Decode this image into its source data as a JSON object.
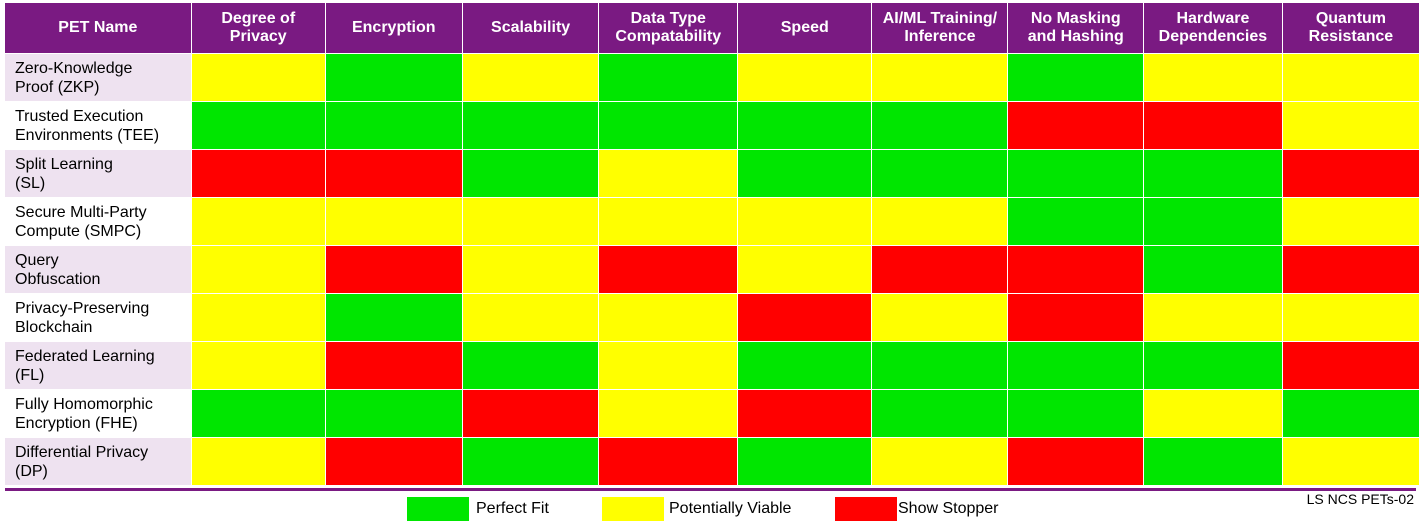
{
  "chart_data": {
    "type": "table",
    "columns": [
      "PET Name",
      "Degree of Privacy",
      "Encryption",
      "Scalability",
      "Data Type Compatability",
      "Speed",
      "AI/ML Training/ Inference",
      "No Masking and Hashing",
      "Hardware Dependencies",
      "Quantum Resistance"
    ],
    "rows": [
      {
        "name": "Zero-Knowledge Proof (ZKP)",
        "values": [
          "Potentially Viable",
          "Perfect Fit",
          "Potentially Viable",
          "Perfect Fit",
          "Potentially Viable",
          "Potentially Viable",
          "Perfect Fit",
          "Potentially Viable",
          "Potentially Viable"
        ]
      },
      {
        "name": "Trusted Execution Environments (TEE)",
        "values": [
          "Perfect Fit",
          "Perfect Fit",
          "Perfect Fit",
          "Perfect Fit",
          "Perfect Fit",
          "Perfect Fit",
          "Show Stopper",
          "Show Stopper",
          "Potentially Viable"
        ]
      },
      {
        "name": "Split Learning (SL)",
        "values": [
          "Show Stopper",
          "Show Stopper",
          "Perfect Fit",
          "Potentially Viable",
          "Perfect Fit",
          "Perfect Fit",
          "Perfect Fit",
          "Perfect Fit",
          "Show Stopper"
        ]
      },
      {
        "name": "Secure Multi-Party Compute (SMPC)",
        "values": [
          "Potentially Viable",
          "Potentially Viable",
          "Potentially Viable",
          "Potentially Viable",
          "Potentially Viable",
          "Potentially Viable",
          "Perfect Fit",
          "Perfect Fit",
          "Potentially Viable"
        ]
      },
      {
        "name": "Query Obfuscation",
        "values": [
          "Potentially Viable",
          "Show Stopper",
          "Potentially Viable",
          "Show Stopper",
          "Potentially Viable",
          "Show Stopper",
          "Show Stopper",
          "Perfect Fit",
          "Show Stopper"
        ]
      },
      {
        "name": "Privacy-Preserving Blockchain",
        "values": [
          "Potentially Viable",
          "Perfect Fit",
          "Potentially Viable",
          "Potentially Viable",
          "Show Stopper",
          "Potentially Viable",
          "Show Stopper",
          "Potentially Viable",
          "Potentially Viable"
        ]
      },
      {
        "name": "Federated Learning (FL)",
        "values": [
          "Potentially Viable",
          "Show Stopper",
          "Perfect Fit",
          "Potentially Viable",
          "Perfect Fit",
          "Perfect Fit",
          "Perfect Fit",
          "Perfect Fit",
          "Show Stopper"
        ]
      },
      {
        "name": "Fully Homomorphic Encryption (FHE)",
        "values": [
          "Perfect Fit",
          "Perfect Fit",
          "Show Stopper",
          "Potentially Viable",
          "Show Stopper",
          "Perfect Fit",
          "Perfect Fit",
          "Potentially Viable",
          "Perfect Fit"
        ]
      },
      {
        "name": "Differential Privacy (DP)",
        "values": [
          "Potentially Viable",
          "Show Stopper",
          "Perfect Fit",
          "Show Stopper",
          "Perfect Fit",
          "Potentially Viable",
          "Show Stopper",
          "Perfect Fit",
          "Potentially Viable"
        ]
      }
    ],
    "row_label_lines": [
      [
        "Zero-Knowledge",
        "Proof (ZKP)"
      ],
      [
        "Trusted Execution",
        "Environments (TEE)"
      ],
      [
        "Split Learning",
        "(SL)"
      ],
      [
        "Secure Multi-Party",
        "Compute (SMPC)"
      ],
      [
        "Query",
        "Obfuscation"
      ],
      [
        "Privacy-Preserving",
        "Blockchain"
      ],
      [
        "Federated Learning",
        "(FL)"
      ],
      [
        "Fully Homomorphic",
        "Encryption (FHE)"
      ],
      [
        "Differential Privacy",
        "(DP)"
      ]
    ],
    "header_lines": [
      [
        "PET Name"
      ],
      [
        "Degree of",
        "Privacy"
      ],
      [
        "Encryption"
      ],
      [
        "Scalability"
      ],
      [
        "Data Type",
        "Compatability"
      ],
      [
        "Speed"
      ],
      [
        "AI/ML Training/",
        "Inference"
      ],
      [
        "No Masking",
        "and Hashing"
      ],
      [
        "Hardware",
        "Dependencies"
      ],
      [
        "Quantum",
        "Resistance"
      ]
    ],
    "legend": [
      {
        "label": "Perfect Fit",
        "color": "#00e600"
      },
      {
        "label": "Potentially Viable",
        "color": "#ffff00"
      },
      {
        "label": "Show Stopper",
        "color": "#ff0000"
      }
    ]
  },
  "footnote": "LS NCS PETs-02",
  "colors": {
    "header_bg": "#7a1a82",
    "perfect_fit": "#00e600",
    "potentially_viable": "#ffff00",
    "show_stopper": "#ff0000"
  }
}
